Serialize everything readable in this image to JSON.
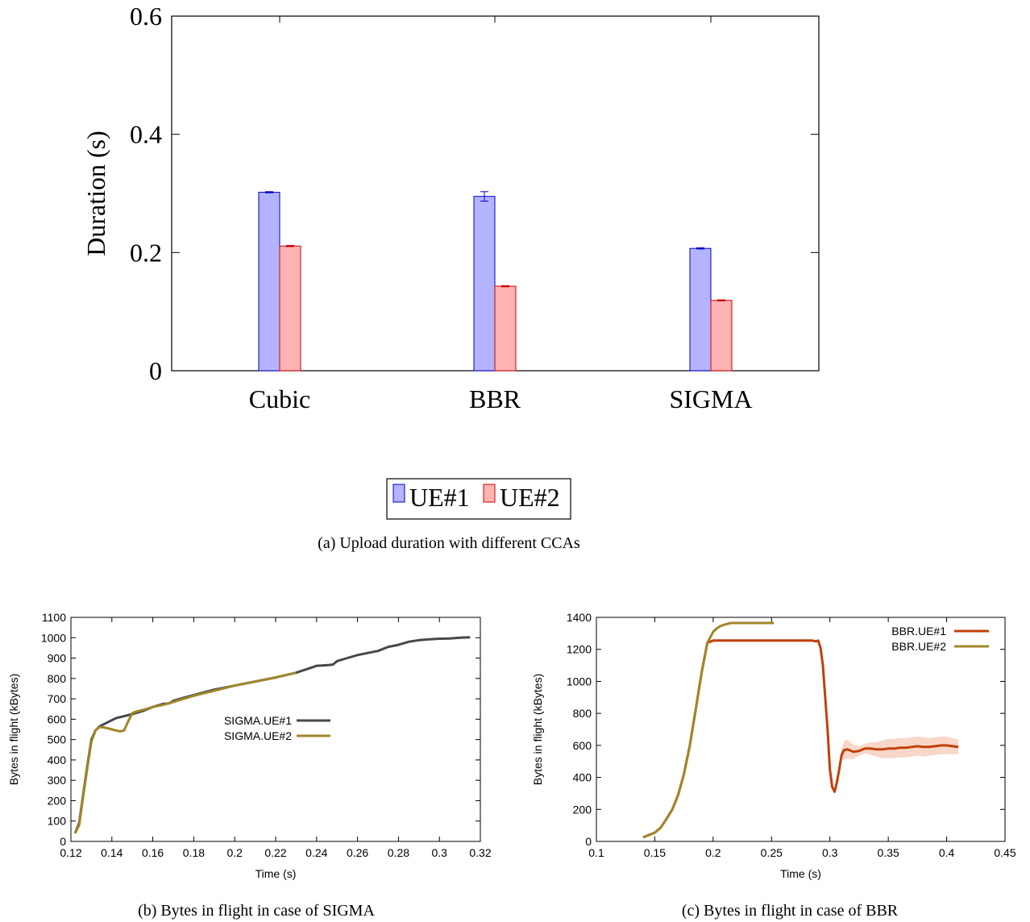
{
  "chart_data": [
    {
      "type": "bar",
      "caption": "(a) Upload duration with different CCAs",
      "categories": [
        "Cubic",
        "BBR",
        "SIGMA"
      ],
      "ylabel": "Duration (s)",
      "xlabel": "",
      "ylim": [
        0,
        0.6
      ],
      "yticks": [
        0,
        0.2,
        0.4,
        0.6
      ],
      "ytick_labels": [
        "0",
        "0.2",
        "0.4",
        "0.6"
      ],
      "grid": false,
      "legend_position": "bottom-center",
      "series": [
        {
          "name": "UE#1",
          "values": [
            0.302,
            0.295,
            0.207
          ],
          "errors": [
            0.001,
            0.008,
            0.001
          ],
          "color": "#0000cc",
          "fill": "#b3b3ff"
        },
        {
          "name": "UE#2",
          "values": [
            0.211,
            0.143,
            0.119
          ],
          "errors": [
            0.001,
            0.001,
            0.001
          ],
          "color": "#cc0000",
          "fill": "#ffb3b3"
        }
      ]
    },
    {
      "type": "line",
      "caption": "(b) Bytes in flight in case of SIGMA",
      "xlabel": "Time (s)",
      "ylabel": "Bytes in flight (kBytes)",
      "xlim": [
        0.12,
        0.32
      ],
      "ylim": [
        0,
        1100
      ],
      "xticks": [
        0.12,
        0.14,
        0.16,
        0.18,
        0.2,
        0.22,
        0.24,
        0.26,
        0.28,
        0.3,
        0.32
      ],
      "xtick_labels": [
        "0.12",
        "0.14",
        "0.16",
        "0.18",
        "0.2",
        "0.22",
        "0.24",
        "0.26",
        "0.28",
        "0.3",
        "0.32"
      ],
      "yticks": [
        0,
        100,
        200,
        300,
        400,
        500,
        600,
        700,
        800,
        900,
        1000,
        1100
      ],
      "ytick_labels": [
        "0",
        "100",
        "200",
        "300",
        "400",
        "500",
        "600",
        "700",
        "800",
        "900",
        "1000",
        "1100"
      ],
      "grid": false,
      "legend_position": "center-right",
      "series": [
        {
          "name": "SIGMA.UE#1",
          "color": "#45484d",
          "x": [
            0.122,
            0.124,
            0.126,
            0.128,
            0.13,
            0.132,
            0.134,
            0.136,
            0.138,
            0.14,
            0.142,
            0.144,
            0.146,
            0.15,
            0.155,
            0.16,
            0.165,
            0.168,
            0.17,
            0.175,
            0.18,
            0.19,
            0.2,
            0.21,
            0.22,
            0.23,
            0.238,
            0.24,
            0.245,
            0.248,
            0.25,
            0.255,
            0.26,
            0.265,
            0.27,
            0.275,
            0.28,
            0.285,
            0.29,
            0.295,
            0.3,
            0.305,
            0.31,
            0.315
          ],
          "y": [
            40,
            90,
            230,
            370,
            500,
            545,
            565,
            575,
            585,
            595,
            605,
            610,
            615,
            625,
            640,
            660,
            675,
            678,
            690,
            705,
            718,
            745,
            765,
            785,
            805,
            828,
            855,
            862,
            865,
            868,
            885,
            900,
            915,
            925,
            935,
            955,
            965,
            980,
            988,
            992,
            995,
            996,
            1000,
            1002
          ]
        },
        {
          "name": "SIGMA.UE#2",
          "color": "#a08628",
          "x": [
            0.122,
            0.124,
            0.126,
            0.128,
            0.13,
            0.132,
            0.134,
            0.136,
            0.138,
            0.14,
            0.142,
            0.144,
            0.146,
            0.148,
            0.15,
            0.152,
            0.155,
            0.16,
            0.165,
            0.17,
            0.175,
            0.18,
            0.19,
            0.2,
            0.21,
            0.22,
            0.23
          ],
          "y": [
            40,
            80,
            220,
            360,
            490,
            545,
            562,
            560,
            555,
            550,
            545,
            540,
            545,
            590,
            630,
            638,
            645,
            660,
            670,
            685,
            700,
            715,
            740,
            765,
            785,
            805,
            828
          ]
        }
      ]
    },
    {
      "type": "line",
      "caption": "(c) Bytes in flight in case of BBR",
      "xlabel": "Time (s)",
      "ylabel": "Bytes in flight (kBytes)",
      "xlim": [
        0.1,
        0.45
      ],
      "ylim": [
        0,
        1400
      ],
      "xticks": [
        0.1,
        0.15,
        0.2,
        0.25,
        0.3,
        0.35,
        0.4,
        0.45
      ],
      "xtick_labels": [
        "0.1",
        "0.15",
        "0.2",
        "0.25",
        "0.3",
        "0.35",
        "0.4",
        "0.45"
      ],
      "yticks": [
        0,
        200,
        400,
        600,
        800,
        1000,
        1200,
        1400
      ],
      "ytick_labels": [
        "0",
        "200",
        "400",
        "600",
        "800",
        "1000",
        "1200",
        "1400"
      ],
      "grid": false,
      "legend_position": "top-right",
      "series": [
        {
          "name": "BBR.UE#1",
          "color": "#c0400a",
          "band_color": "#f5c9b5",
          "x": [
            0.14,
            0.15,
            0.155,
            0.16,
            0.165,
            0.17,
            0.175,
            0.18,
            0.185,
            0.19,
            0.195,
            0.2,
            0.205,
            0.21,
            0.25,
            0.28,
            0.285,
            0.288,
            0.29,
            0.292,
            0.294,
            0.296,
            0.298,
            0.3,
            0.302,
            0.304,
            0.306,
            0.308,
            0.31,
            0.312,
            0.315,
            0.32,
            0.325,
            0.33,
            0.335,
            0.34,
            0.345,
            0.35,
            0.355,
            0.36,
            0.365,
            0.37,
            0.375,
            0.38,
            0.385,
            0.39,
            0.395,
            0.4,
            0.405,
            0.41
          ],
          "y": [
            25,
            55,
            85,
            140,
            200,
            290,
            420,
            600,
            820,
            1050,
            1240,
            1255,
            1255,
            1255,
            1255,
            1255,
            1255,
            1250,
            1255,
            1210,
            1100,
            900,
            700,
            450,
            340,
            310,
            370,
            450,
            540,
            570,
            575,
            560,
            565,
            580,
            580,
            575,
            575,
            580,
            580,
            585,
            585,
            590,
            595,
            590,
            590,
            595,
            600,
            600,
            595,
            590
          ],
          "band": [
            0,
            0,
            0,
            0,
            0,
            0,
            0,
            0,
            0,
            0,
            0,
            0,
            0,
            0,
            0,
            0,
            0,
            0,
            0,
            0,
            0,
            0,
            0,
            0,
            10,
            15,
            20,
            30,
            40,
            55,
            60,
            45,
            30,
            30,
            40,
            45,
            55,
            60,
            60,
            60,
            60,
            60,
            60,
            60,
            55,
            55,
            55,
            55,
            50,
            45
          ]
        },
        {
          "name": "BBR.UE#2",
          "color": "#a08628",
          "x": [
            0.14,
            0.15,
            0.155,
            0.16,
            0.165,
            0.17,
            0.175,
            0.18,
            0.185,
            0.19,
            0.195,
            0.2,
            0.203,
            0.206,
            0.21,
            0.215,
            0.22,
            0.23,
            0.24,
            0.252
          ],
          "y": [
            25,
            55,
            85,
            140,
            200,
            290,
            420,
            600,
            820,
            1050,
            1240,
            1310,
            1330,
            1345,
            1355,
            1365,
            1365,
            1365,
            1365,
            1365
          ]
        }
      ]
    }
  ]
}
